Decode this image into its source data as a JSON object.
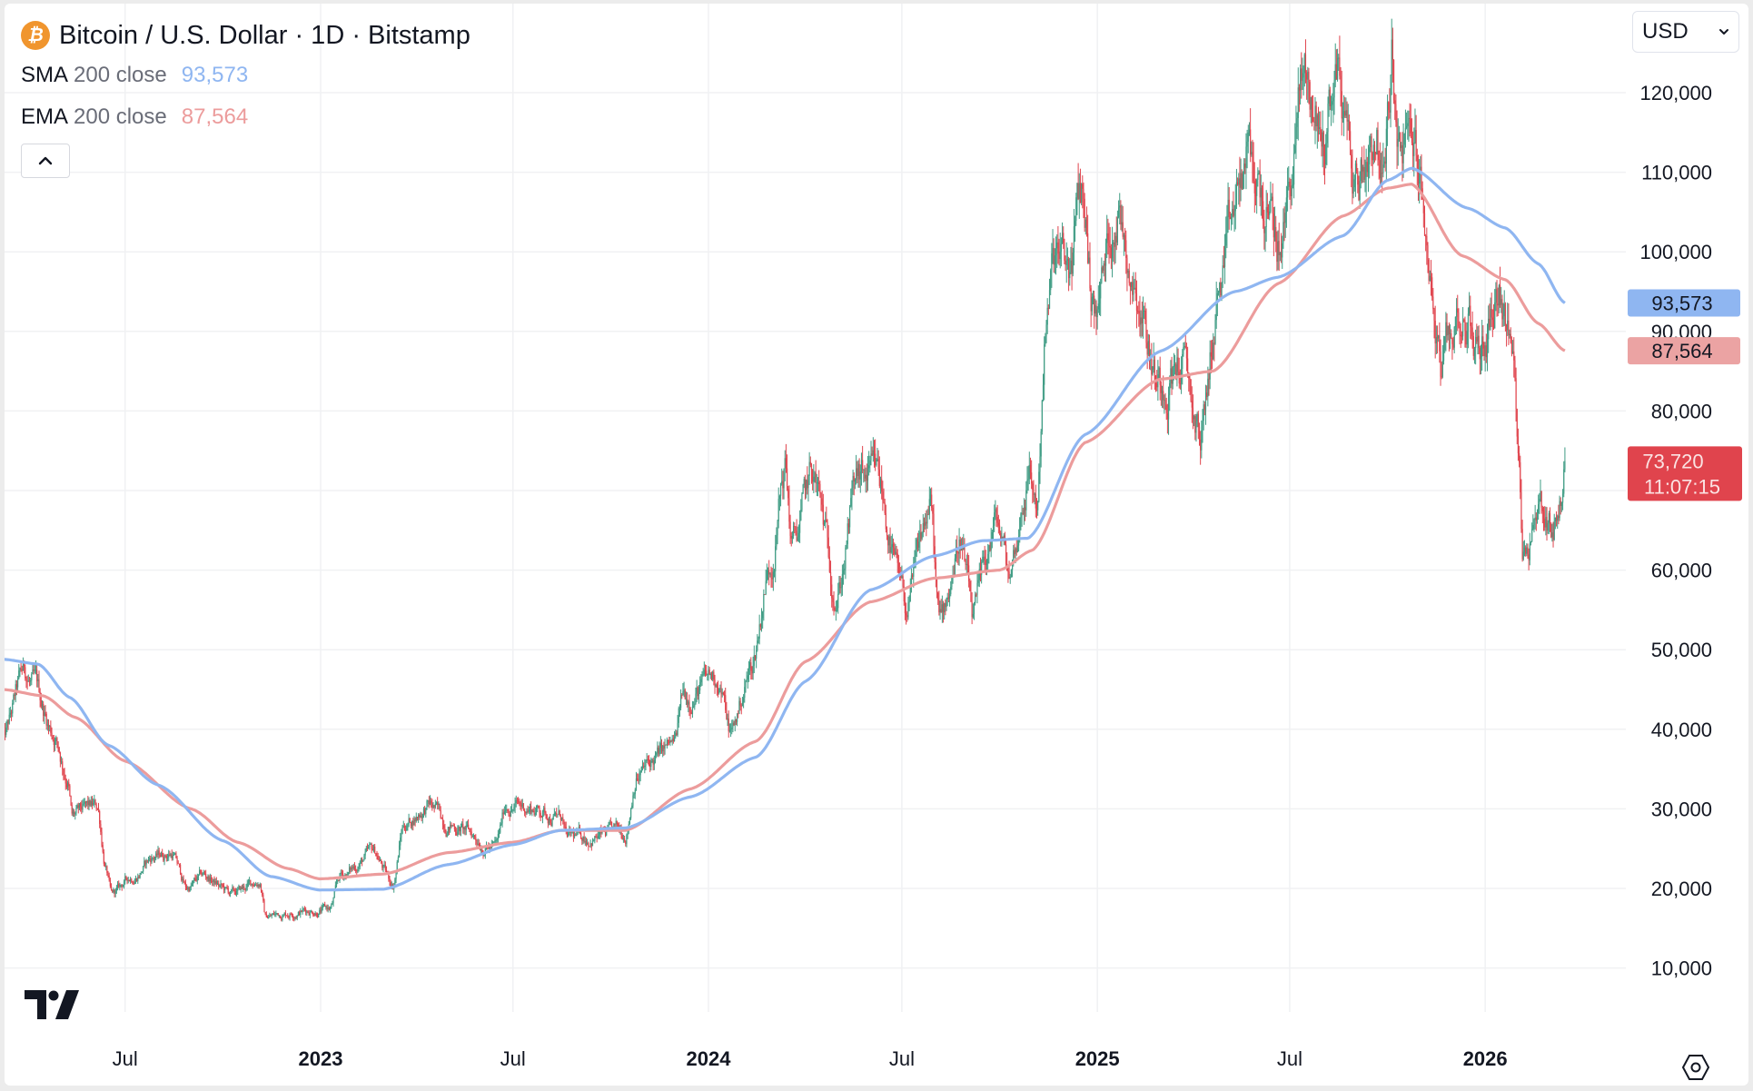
{
  "header": {
    "title": "Bitcoin / U.S. Dollar · 1D · Bitstamp",
    "icon": "bitcoin-icon",
    "currency_label": "USD"
  },
  "indicators": [
    {
      "name": "SMA",
      "params": "200 close",
      "value": "93,573",
      "color": "#8fb6f1"
    },
    {
      "name": "EMA",
      "params": "200 close",
      "value": "87,564",
      "color": "#ec9c9c"
    }
  ],
  "price_badges": {
    "sma": "93,573",
    "ema": "87,564",
    "last": "73,720",
    "countdown": "11:07:15"
  },
  "colors": {
    "up": "#3f9c84",
    "down": "#e0444d",
    "sma": "#8fb6f1",
    "ema": "#ec9c9c",
    "last": "#e0444d",
    "grid": "#f0f1f3"
  },
  "chart_data": {
    "type": "candlestick",
    "title": "Bitcoin / U.S. Dollar · 1D · Bitstamp",
    "ylim": [
      0,
      130000
    ],
    "y_ticks": [
      10000,
      20000,
      30000,
      40000,
      50000,
      60000,
      70000,
      80000,
      90000,
      100000,
      110000,
      120000
    ],
    "y_tick_labels": [
      "10,000",
      "20,000",
      "30,000",
      "40,000",
      "50,000",
      "60,000",
      "70,000",
      "80,000",
      "90,000",
      "100,000",
      "110,000",
      "120,000"
    ],
    "x_ticks": [
      {
        "date": "2022-07-01",
        "label": "Jul",
        "major": false
      },
      {
        "date": "2023-01-01",
        "label": "2023",
        "major": true
      },
      {
        "date": "2023-07-01",
        "label": "Jul",
        "major": false
      },
      {
        "date": "2024-01-01",
        "label": "2024",
        "major": true
      },
      {
        "date": "2024-07-01",
        "label": "Jul",
        "major": false
      },
      {
        "date": "2025-01-01",
        "label": "2025",
        "major": true
      },
      {
        "date": "2025-07-01",
        "label": "Jul",
        "major": false
      },
      {
        "date": "2026-01-01",
        "label": "2026",
        "major": true
      }
    ],
    "x_range": [
      "2022-03-08",
      "2026-04-25"
    ],
    "price_close_keypoints": [
      [
        "2022-03-08",
        38500
      ],
      [
        "2022-03-28",
        47000
      ],
      [
        "2022-04-05",
        45500
      ],
      [
        "2022-04-25",
        39500
      ],
      [
        "2022-05-08",
        34000
      ],
      [
        "2022-05-12",
        29000
      ],
      [
        "2022-06-05",
        30000
      ],
      [
        "2022-06-13",
        22500
      ],
      [
        "2022-06-18",
        19000
      ],
      [
        "2022-07-08",
        21500
      ],
      [
        "2022-07-28",
        24000
      ],
      [
        "2022-08-14",
        24500
      ],
      [
        "2022-08-28",
        20000
      ],
      [
        "2022-09-13",
        21500
      ],
      [
        "2022-10-10",
        19200
      ],
      [
        "2022-11-05",
        21000
      ],
      [
        "2022-11-10",
        16500
      ],
      [
        "2022-12-15",
        17300
      ],
      [
        "2023-01-10",
        17400
      ],
      [
        "2023-01-20",
        21500
      ],
      [
        "2023-02-20",
        24500
      ],
      [
        "2023-03-10",
        20500
      ],
      [
        "2023-03-20",
        28000
      ],
      [
        "2023-04-13",
        30400
      ],
      [
        "2023-05-01",
        28200
      ],
      [
        "2023-06-15",
        25200
      ],
      [
        "2023-06-25",
        30500
      ],
      [
        "2023-07-15",
        30200
      ],
      [
        "2023-08-16",
        29000
      ],
      [
        "2023-08-20",
        26100
      ],
      [
        "2023-09-15",
        26500
      ],
      [
        "2023-10-15",
        27000
      ],
      [
        "2023-10-25",
        34500
      ],
      [
        "2023-11-30",
        37800
      ],
      [
        "2023-12-08",
        44000
      ],
      [
        "2024-01-10",
        46500
      ],
      [
        "2024-01-22",
        39500
      ],
      [
        "2024-02-10",
        47500
      ],
      [
        "2024-02-28",
        61000
      ],
      [
        "2024-03-13",
        73000
      ],
      [
        "2024-03-20",
        63000
      ],
      [
        "2024-04-08",
        71500
      ],
      [
        "2024-05-01",
        57500
      ],
      [
        "2024-05-20",
        71000
      ],
      [
        "2024-06-07",
        71000
      ],
      [
        "2024-07-05",
        55000
      ],
      [
        "2024-07-28",
        68000
      ],
      [
        "2024-08-05",
        53000
      ],
      [
        "2024-08-25",
        64000
      ],
      [
        "2024-09-06",
        53800
      ],
      [
        "2024-09-28",
        65800
      ],
      [
        "2024-10-10",
        59500
      ],
      [
        "2024-10-29",
        72500
      ],
      [
        "2024-11-05",
        68000
      ],
      [
        "2024-11-13",
        90000
      ],
      [
        "2024-11-22",
        98500
      ],
      [
        "2024-12-05",
        97000
      ],
      [
        "2024-12-17",
        107000
      ],
      [
        "2024-12-30",
        92500
      ],
      [
        "2025-01-20",
        106000
      ],
      [
        "2025-02-05",
        97500
      ],
      [
        "2025-02-27",
        84000
      ],
      [
        "2025-03-20",
        86500
      ],
      [
        "2025-04-08",
        76500
      ],
      [
        "2025-04-25",
        94500
      ],
      [
        "2025-05-22",
        111000
      ],
      [
        "2025-06-22",
        100500
      ],
      [
        "2025-07-14",
        121500
      ],
      [
        "2025-08-02",
        113500
      ],
      [
        "2025-08-14",
        123500
      ],
      [
        "2025-09-01",
        108500
      ],
      [
        "2025-09-20",
        116000
      ],
      [
        "2025-09-28",
        109500
      ],
      [
        "2025-10-06",
        124500
      ],
      [
        "2025-10-10",
        112000
      ],
      [
        "2025-10-28",
        113000
      ],
      [
        "2025-11-06",
        101000
      ],
      [
        "2025-11-21",
        84500
      ],
      [
        "2025-12-10",
        92500
      ],
      [
        "2025-12-28",
        87500
      ],
      [
        "2026-01-14",
        96500
      ],
      [
        "2026-01-25",
        88000
      ],
      [
        "2026-02-02",
        76500
      ],
      [
        "2026-02-05",
        63000
      ],
      [
        "2026-02-20",
        68500
      ],
      [
        "2026-03-05",
        66000
      ],
      [
        "2026-03-15",
        70000
      ],
      [
        "2026-03-17",
        73720
      ]
    ],
    "series": [
      {
        "name": "SMA 200 close",
        "last": 93573,
        "points": [
          [
            "2022-03-08",
            48800
          ],
          [
            "2022-04-10",
            48200
          ],
          [
            "2022-05-10",
            44000
          ],
          [
            "2022-06-15",
            38000
          ],
          [
            "2022-08-01",
            33000
          ],
          [
            "2022-10-01",
            26000
          ],
          [
            "2022-11-15",
            21500
          ],
          [
            "2022-12-31",
            19800
          ],
          [
            "2023-03-01",
            19900
          ],
          [
            "2023-05-01",
            23000
          ],
          [
            "2023-07-01",
            25500
          ],
          [
            "2023-08-15",
            27300
          ],
          [
            "2023-10-15",
            27600
          ],
          [
            "2023-12-15",
            31500
          ],
          [
            "2024-02-15",
            36500
          ],
          [
            "2024-04-01",
            46000
          ],
          [
            "2024-06-01",
            57500
          ],
          [
            "2024-08-01",
            61800
          ],
          [
            "2024-09-15",
            63700
          ],
          [
            "2024-10-28",
            64000
          ],
          [
            "2024-12-20",
            77000
          ],
          [
            "2025-03-01",
            87500
          ],
          [
            "2025-05-10",
            95000
          ],
          [
            "2025-06-20",
            96800
          ],
          [
            "2025-08-20",
            102000
          ],
          [
            "2025-10-01",
            109000
          ],
          [
            "2025-10-24",
            110500
          ],
          [
            "2025-12-15",
            105500
          ],
          [
            "2026-01-20",
            103000
          ],
          [
            "2026-02-20",
            98500
          ],
          [
            "2026-03-17",
            93573
          ]
        ]
      },
      {
        "name": "EMA 200 close",
        "last": 87564,
        "points": [
          [
            "2022-03-08",
            45000
          ],
          [
            "2022-04-15",
            44200
          ],
          [
            "2022-05-15",
            41500
          ],
          [
            "2022-07-01",
            36000
          ],
          [
            "2022-09-01",
            30000
          ],
          [
            "2022-10-15",
            25800
          ],
          [
            "2022-12-01",
            22500
          ],
          [
            "2022-12-31",
            21200
          ],
          [
            "2023-03-01",
            21800
          ],
          [
            "2023-05-01",
            24500
          ],
          [
            "2023-07-01",
            25800
          ],
          [
            "2023-08-15",
            27300
          ],
          [
            "2023-10-15",
            27300
          ],
          [
            "2023-12-15",
            32500
          ],
          [
            "2024-02-15",
            38500
          ],
          [
            "2024-04-01",
            48500
          ],
          [
            "2024-06-01",
            56000
          ],
          [
            "2024-08-01",
            59000
          ],
          [
            "2024-10-01",
            60000
          ],
          [
            "2024-11-01",
            62500
          ],
          [
            "2024-12-20",
            76000
          ],
          [
            "2025-03-01",
            84000
          ],
          [
            "2025-04-20",
            85000
          ],
          [
            "2025-06-20",
            96000
          ],
          [
            "2025-08-20",
            104500
          ],
          [
            "2025-10-01",
            108000
          ],
          [
            "2025-10-24",
            108500
          ],
          [
            "2025-12-10",
            99500
          ],
          [
            "2026-01-20",
            96500
          ],
          [
            "2026-02-20",
            91000
          ],
          [
            "2026-03-17",
            87564
          ]
        ]
      }
    ]
  }
}
